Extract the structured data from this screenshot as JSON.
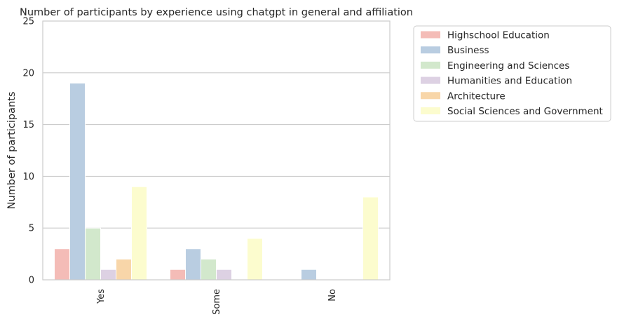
{
  "chart_data": {
    "type": "bar",
    "title": "Number of participants by experience using chatgpt in general and affiliation",
    "xlabel": "",
    "ylabel": "Number of participants",
    "categories": [
      "Yes",
      "Some",
      "No"
    ],
    "ylim": [
      0,
      25
    ],
    "yticks": [
      0,
      5,
      10,
      15,
      20,
      25
    ],
    "grid": "horizontal",
    "legend_position": "outside-right",
    "series": [
      {
        "name": "Highschool Education",
        "color": "#f4bcb7",
        "values": [
          3,
          1,
          0
        ]
      },
      {
        "name": "Business",
        "color": "#b9cde1",
        "values": [
          19,
          3,
          1
        ]
      },
      {
        "name": "Engineering and Sciences",
        "color": "#d2e8cc",
        "values": [
          5,
          2,
          0
        ]
      },
      {
        "name": "Humanities and Education",
        "color": "#ddd1e3",
        "values": [
          1,
          1,
          0
        ]
      },
      {
        "name": "Architecture",
        "color": "#f8d6a9",
        "values": [
          2,
          0,
          0
        ]
      },
      {
        "name": "Social Sciences and Government",
        "color": "#fcfcce",
        "values": [
          9,
          4,
          8
        ]
      }
    ]
  }
}
